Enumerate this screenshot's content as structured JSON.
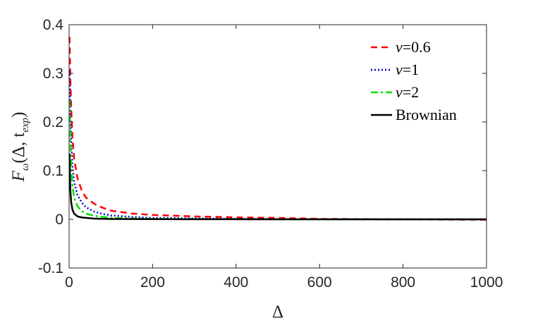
{
  "chart_data": {
    "type": "line",
    "title": "",
    "xlabel": "Δ",
    "ylabel": "F̃ω(Δ, texp)",
    "ylabel_parts": {
      "main": "F",
      "sub": "ω",
      "args": "(Δ, t",
      "args_sub": "exp",
      "close": ")"
    },
    "xlim": [
      0,
      1000
    ],
    "ylim": [
      -0.1,
      0.4
    ],
    "xticks": [
      0,
      200,
      400,
      600,
      800,
      1000
    ],
    "xtick_labels": [
      "0",
      "200",
      "400",
      "600",
      "800",
      "1000"
    ],
    "yticks": [
      -0.1,
      0,
      0.1,
      0.2,
      0.3,
      0.4
    ],
    "ytick_labels": [
      "-0.1",
      "0",
      "0.1",
      "0.2",
      "0.3",
      "0.4"
    ],
    "grid": false,
    "legend_position": "top-right",
    "series": [
      {
        "name": "ν=0.6",
        "label_var": "ν",
        "label_eq": "=0.6",
        "color": "#ff0000",
        "dash": "9,6",
        "x": [
          1,
          2,
          3,
          5,
          8,
          12,
          20,
          30,
          40,
          60,
          80,
          100,
          150,
          200,
          300,
          400,
          500,
          600,
          800,
          1000
        ],
        "y": [
          0.375,
          0.33,
          0.29,
          0.23,
          0.17,
          0.125,
          0.085,
          0.06,
          0.045,
          0.032,
          0.024,
          0.018,
          0.012,
          0.009,
          0.006,
          0.004,
          0.003,
          0.001,
          0.0,
          -0.001
        ]
      },
      {
        "name": "ν=1",
        "label_var": "ν",
        "label_eq": "=1",
        "color": "#0000cc",
        "dash": "2,3",
        "x": [
          1,
          2,
          3,
          5,
          8,
          12,
          20,
          30,
          40,
          60,
          80,
          100,
          150,
          200,
          300,
          400,
          500,
          600,
          800,
          1000
        ],
        "y": [
          0.305,
          0.26,
          0.215,
          0.16,
          0.11,
          0.078,
          0.05,
          0.035,
          0.025,
          0.016,
          0.011,
          0.008,
          0.005,
          0.003,
          0.002,
          0.001,
          0.0005,
          0.0003,
          0.0,
          0.0
        ]
      },
      {
        "name": "ν=2",
        "label_var": "ν",
        "label_eq": "=2",
        "color": "#00e000",
        "dash": "10,4,3,4",
        "x": [
          1,
          2,
          3,
          5,
          8,
          12,
          20,
          30,
          40,
          60,
          80,
          100,
          150,
          200,
          300,
          400,
          500,
          600,
          800,
          1000
        ],
        "y": [
          0.245,
          0.2,
          0.16,
          0.11,
          0.07,
          0.045,
          0.027,
          0.017,
          0.012,
          0.007,
          0.005,
          0.003,
          0.002,
          0.001,
          0.0005,
          0.0003,
          0.0002,
          0.0001,
          0.0,
          0.0
        ]
      },
      {
        "name": "Brownian",
        "label_var": "",
        "label_eq": "Brownian",
        "color": "#000000",
        "dash": "",
        "x": [
          1,
          2,
          3,
          5,
          8,
          12,
          20,
          30,
          40,
          60,
          80,
          100,
          150,
          200,
          300,
          400,
          500,
          600,
          800,
          1000
        ],
        "y": [
          0.135,
          0.09,
          0.06,
          0.035,
          0.02,
          0.012,
          0.006,
          0.004,
          0.003,
          0.0015,
          0.001,
          0.0008,
          0.0005,
          0.0003,
          0.0002,
          0.0001,
          0.0,
          0.0,
          0.0,
          0.0
        ]
      }
    ]
  }
}
